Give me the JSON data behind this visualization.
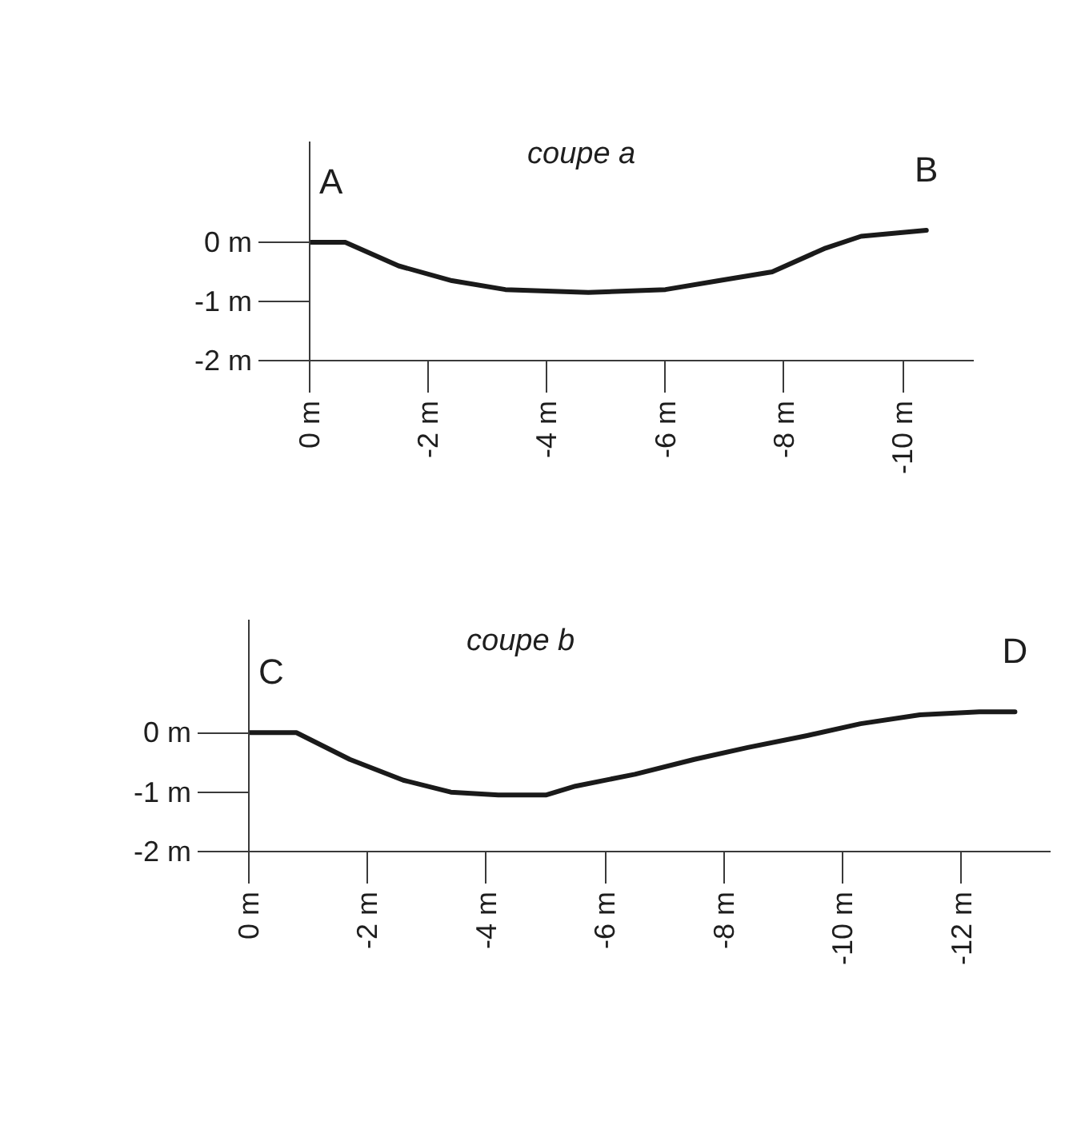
{
  "chart_data": [
    {
      "type": "line",
      "title": "coupe a",
      "x": [
        0,
        -0.6,
        -1.5,
        -2.4,
        -3.3,
        -4.7,
        -6.0,
        -6.9,
        -7.8,
        -8.7,
        -9.3,
        -10.4
      ],
      "values": [
        0,
        0,
        -0.4,
        -0.65,
        -0.8,
        -0.85,
        -0.8,
        -0.65,
        -0.5,
        -0.1,
        0.1,
        0.2
      ],
      "color": "#1a1a1a",
      "line_style": "solid",
      "grid": false,
      "xlim": [
        0,
        -11.2
      ],
      "xticks": [
        {
          "value": 0,
          "label": "0 m"
        },
        {
          "value": -2,
          "label": "-2 m"
        },
        {
          "value": -4,
          "label": "-4 m"
        },
        {
          "value": -6,
          "label": "-6 m"
        },
        {
          "value": -8,
          "label": "-8 m"
        },
        {
          "value": -10,
          "label": "-10 m"
        }
      ],
      "ylim": [
        -2,
        1.7
      ],
      "yticks": [
        {
          "value": 0,
          "label": "0 m"
        },
        {
          "value": -1,
          "label": "-1 m"
        },
        {
          "value": -2,
          "label": "-2 m"
        }
      ],
      "annotations": [
        {
          "text": "A",
          "x": 0,
          "y": 0
        },
        {
          "text": "B",
          "x": -10.4,
          "y": 0.2
        }
      ]
    },
    {
      "type": "line",
      "title": "coupe b",
      "x": [
        0,
        -0.8,
        -1.7,
        -2.6,
        -3.4,
        -4.2,
        -5.0,
        -5.5,
        -6.5,
        -7.5,
        -8.4,
        -9.4,
        -10.3,
        -11.3,
        -12.3,
        -12.9
      ],
      "values": [
        0,
        0,
        -0.45,
        -0.8,
        -1.0,
        -1.05,
        -1.05,
        -0.9,
        -0.7,
        -0.45,
        -0.25,
        -0.05,
        0.15,
        0.3,
        0.35,
        0.35
      ],
      "color": "#1a1a1a",
      "line_style": "solid",
      "grid": false,
      "xlim": [
        0,
        -13.5
      ],
      "xticks": [
        {
          "value": 0,
          "label": "0 m"
        },
        {
          "value": -2,
          "label": "-2 m"
        },
        {
          "value": -4,
          "label": "-4 m"
        },
        {
          "value": -6,
          "label": "-6 m"
        },
        {
          "value": -8,
          "label": "-8 m"
        },
        {
          "value": -10,
          "label": "-10 m"
        },
        {
          "value": -12,
          "label": "-12 m"
        }
      ],
      "ylim": [
        -2,
        1.9
      ],
      "yticks": [
        {
          "value": 0,
          "label": "0 m"
        },
        {
          "value": -1,
          "label": "-1 m"
        },
        {
          "value": -2,
          "label": "-2 m"
        }
      ],
      "annotations": [
        {
          "text": "C",
          "x": 0,
          "y": 0
        },
        {
          "text": "D",
          "x": -12.9,
          "y": 0.35
        }
      ]
    }
  ]
}
